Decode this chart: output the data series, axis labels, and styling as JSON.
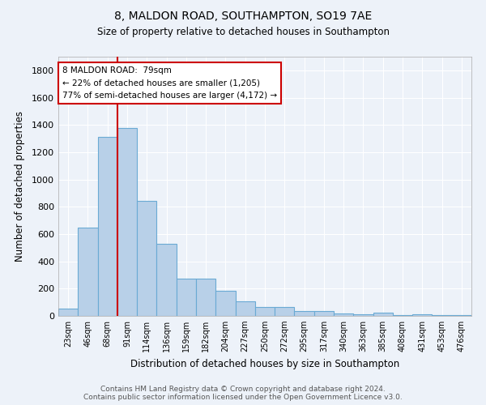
{
  "title1": "8, MALDON ROAD, SOUTHAMPTON, SO19 7AE",
  "title2": "Size of property relative to detached houses in Southampton",
  "xlabel": "Distribution of detached houses by size in Southampton",
  "ylabel": "Number of detached properties",
  "categories": [
    "23sqm",
    "46sqm",
    "68sqm",
    "91sqm",
    "114sqm",
    "136sqm",
    "159sqm",
    "182sqm",
    "204sqm",
    "227sqm",
    "250sqm",
    "272sqm",
    "295sqm",
    "317sqm",
    "340sqm",
    "363sqm",
    "385sqm",
    "408sqm",
    "431sqm",
    "453sqm",
    "476sqm"
  ],
  "values": [
    55,
    645,
    1310,
    1375,
    845,
    530,
    275,
    275,
    185,
    105,
    65,
    65,
    35,
    35,
    20,
    10,
    25,
    5,
    10,
    5,
    5
  ],
  "bar_color": "#b8d0e8",
  "bar_edge_color": "#6aaad4",
  "bg_color": "#edf2f9",
  "grid_color": "#ffffff",
  "red_line_x": 2.5,
  "annotation_line1": "8 MALDON ROAD:  79sqm",
  "annotation_line2": "← 22% of detached houses are smaller (1,205)",
  "annotation_line3": "77% of semi-detached houses are larger (4,172) →",
  "annotation_box_color": "#ffffff",
  "annotation_box_edge": "#cc0000",
  "red_line_color": "#cc0000",
  "ylim": [
    0,
    1900
  ],
  "yticks": [
    0,
    200,
    400,
    600,
    800,
    1000,
    1200,
    1400,
    1600,
    1800
  ],
  "title1_fontsize": 10,
  "title2_fontsize": 8.5,
  "footer1": "Contains HM Land Registry data © Crown copyright and database right 2024.",
  "footer2": "Contains public sector information licensed under the Open Government Licence v3.0.",
  "footer_fontsize": 6.5
}
